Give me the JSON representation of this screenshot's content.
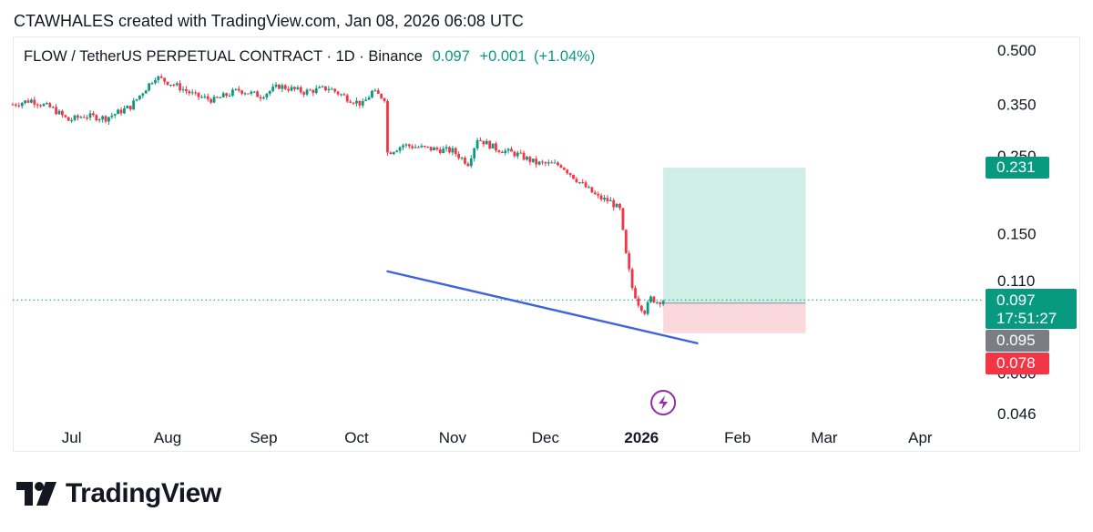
{
  "header": {
    "text": "CTAWHALES created with TradingView.com, Jan 08, 2026 06:08 UTC"
  },
  "legend": {
    "symbol": "FLOW / TetherUS PERPETUAL CONTRACT · 1D · Binance",
    "last": "0.097",
    "change": "+0.001",
    "change_pct": "(+1.04%)"
  },
  "price_tags": {
    "target": "0.231",
    "last": "0.097",
    "countdown": "17:51:27",
    "entry": "0.095",
    "stop": "0.078"
  },
  "colors": {
    "up": "#089981",
    "down": "#f23645",
    "trendline": "#3d63dd",
    "profit_zone": "#cfeee6",
    "loss_zone": "#fbd8dc",
    "last_line": "#089981"
  },
  "footer": {
    "brand": "TradingView",
    "logo_icon": "tradingview-logo-icon"
  },
  "chart_data": {
    "type": "candlestick",
    "y_scale": "log",
    "ylim": [
      0.046,
      0.5
    ],
    "y_ticks": [
      "0.500",
      "0.350",
      "0.250",
      "0.150",
      "0.110",
      "0.060",
      "0.046"
    ],
    "x_ticks": [
      {
        "label": "Jul",
        "date": "2025-07-01"
      },
      {
        "label": "Aug",
        "date": "2025-08-01"
      },
      {
        "label": "Sep",
        "date": "2025-09-01"
      },
      {
        "label": "Oct",
        "date": "2025-10-01"
      },
      {
        "label": "Nov",
        "date": "2025-11-01"
      },
      {
        "label": "Dec",
        "date": "2025-12-01"
      },
      {
        "label": "2026",
        "date": "2026-01-01",
        "bold": true
      },
      {
        "label": "Feb",
        "date": "2026-02-01"
      },
      {
        "label": "Mar",
        "date": "2026-03-01"
      },
      {
        "label": "Apr",
        "date": "2026-04-01"
      }
    ],
    "x_range": [
      "2025-06-12",
      "2026-04-20"
    ],
    "close_path": [
      [
        "2025-06-12",
        0.35
      ],
      [
        "2025-06-18",
        0.36
      ],
      [
        "2025-06-25",
        0.34
      ],
      [
        "2025-06-30",
        0.315
      ],
      [
        "2025-07-05",
        0.325
      ],
      [
        "2025-07-12",
        0.32
      ],
      [
        "2025-07-20",
        0.345
      ],
      [
        "2025-07-28",
        0.42
      ],
      [
        "2025-08-04",
        0.395
      ],
      [
        "2025-08-10",
        0.37
      ],
      [
        "2025-08-16",
        0.36
      ],
      [
        "2025-08-24",
        0.385
      ],
      [
        "2025-08-31",
        0.37
      ],
      [
        "2025-09-06",
        0.395
      ],
      [
        "2025-09-14",
        0.38
      ],
      [
        "2025-09-22",
        0.39
      ],
      [
        "2025-09-28",
        0.365
      ],
      [
        "2025-10-03",
        0.35
      ],
      [
        "2025-10-06",
        0.38
      ],
      [
        "2025-10-10",
        0.365
      ],
      [
        "2025-10-11",
        0.255
      ],
      [
        "2025-10-16",
        0.268
      ],
      [
        "2025-10-24",
        0.262
      ],
      [
        "2025-11-01",
        0.258
      ],
      [
        "2025-11-06",
        0.238
      ],
      [
        "2025-11-09",
        0.28
      ],
      [
        "2025-11-15",
        0.262
      ],
      [
        "2025-11-22",
        0.252
      ],
      [
        "2025-11-28",
        0.238
      ],
      [
        "2025-12-06",
        0.235
      ],
      [
        "2025-12-12",
        0.21
      ],
      [
        "2025-12-18",
        0.19
      ],
      [
        "2025-12-22",
        0.185
      ],
      [
        "2025-12-25",
        0.175
      ],
      [
        "2025-12-27",
        0.13
      ],
      [
        "2025-12-29",
        0.105
      ],
      [
        "2025-12-31",
        0.095
      ],
      [
        "2026-01-02",
        0.09
      ],
      [
        "2026-01-04",
        0.098
      ],
      [
        "2026-01-06",
        0.096
      ],
      [
        "2026-01-08",
        0.097
      ]
    ],
    "trendline": [
      [
        "2025-10-11",
        0.117
      ],
      [
        "2026-01-19",
        0.073
      ]
    ],
    "position": {
      "start": "2026-01-08",
      "end": "2026-02-23",
      "entry": 0.095,
      "target": 0.231,
      "stop": 0.078
    },
    "last_price": 0.097
  }
}
